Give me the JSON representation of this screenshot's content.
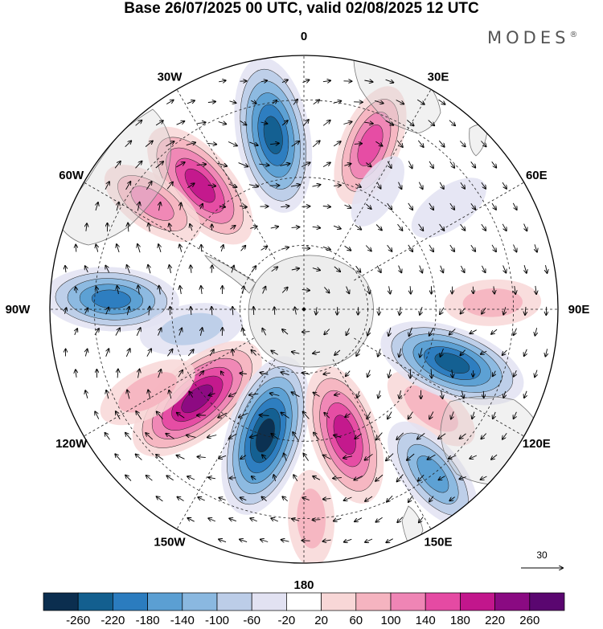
{
  "title": "Base 26/07/2025 00 UTC, valid 02/08/2025 12 UTC",
  "brand": "MODES",
  "brand_mark": "®",
  "map": {
    "projection": "south-polar-stereographic",
    "longitude_labels": [
      {
        "text": "0",
        "lon": 0
      },
      {
        "text": "30E",
        "lon": 30
      },
      {
        "text": "60E",
        "lon": 60
      },
      {
        "text": "90E",
        "lon": 90
      },
      {
        "text": "120E",
        "lon": 120
      },
      {
        "text": "150E",
        "lon": 150
      },
      {
        "text": "180",
        "lon": 180
      },
      {
        "text": "150W",
        "lon": -150
      },
      {
        "text": "120W",
        "lon": -120
      },
      {
        "text": "90W",
        "lon": -90
      },
      {
        "text": "60W",
        "lon": -60
      },
      {
        "text": "30W",
        "lon": -30
      }
    ],
    "anomaly_centers": [
      {
        "lon": -10,
        "lat": -38,
        "value": -240
      },
      {
        "lon": 22,
        "lat": -38,
        "value": 150
      },
      {
        "lon": -40,
        "lat": -42,
        "value": 200
      },
      {
        "lon": -55,
        "lat": -36,
        "value": 110
      },
      {
        "lon": -87,
        "lat": -34,
        "value": -180
      },
      {
        "lon": -100,
        "lat": -55,
        "value": -90
      },
      {
        "lon": -130,
        "lat": -48,
        "value": 240
      },
      {
        "lon": -118,
        "lat": -38,
        "value": 90
      },
      {
        "lon": -163,
        "lat": -50,
        "value": -260
      },
      {
        "lon": 162,
        "lat": -50,
        "value": 200
      },
      {
        "lon": 128,
        "lat": -42,
        "value": 90
      },
      {
        "lon": 110,
        "lat": -43,
        "value": -220
      },
      {
        "lon": 88,
        "lat": -35,
        "value": 70
      },
      {
        "lon": 142,
        "lat": -30,
        "value": -150
      },
      {
        "lon": 178,
        "lat": -30,
        "value": 70
      },
      {
        "lon": 55,
        "lat": -38,
        "value": -40
      },
      {
        "lon": 32,
        "lat": -48,
        "value": -20
      }
    ],
    "reference_vector": {
      "label": "30",
      "magnitude": 30
    }
  },
  "colorbar": {
    "tick_labels": [
      "-260",
      "-220",
      "-180",
      "-140",
      "-100",
      "-60",
      "-20",
      "20",
      "60",
      "100",
      "140",
      "180",
      "220",
      "260"
    ],
    "colors": [
      "#0b2e4f",
      "#135f8f",
      "#2b7cbf",
      "#5b9fd3",
      "#8ab8e0",
      "#bccde8",
      "#e2e2f2",
      "#ffffff",
      "#f8d7d7",
      "#f5b4c0",
      "#ef85b5",
      "#e54aa3",
      "#c2168c",
      "#8a0a82",
      "#5a0670"
    ]
  }
}
